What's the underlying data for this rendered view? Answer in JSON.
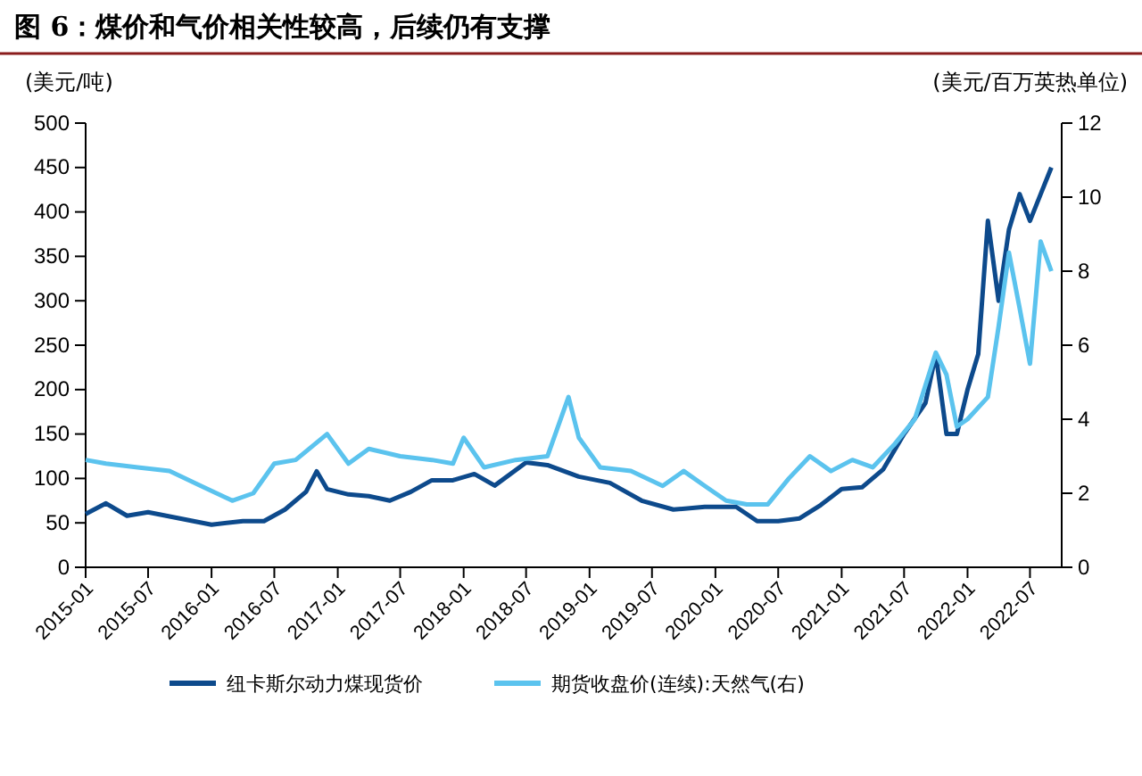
{
  "chart_data": {
    "type": "line",
    "title": "图 6：煤价和气价相关性较高，后续仍有支撑",
    "ylabel": "(美元/吨)",
    "y2label": "(美元/百万英热单位)",
    "xlim": [
      "2015-01",
      "2022-10"
    ],
    "xticks": [
      "2015-01",
      "2015-07",
      "2016-01",
      "2016-07",
      "2017-01",
      "2017-07",
      "2018-01",
      "2018-07",
      "2019-01",
      "2019-07",
      "2020-01",
      "2020-07",
      "2021-01",
      "2021-07",
      "2022-01",
      "2022-07"
    ],
    "ylim": [
      0,
      500
    ],
    "yticks": [
      0,
      50,
      100,
      150,
      200,
      250,
      300,
      350,
      400,
      450,
      500
    ],
    "y2lim": [
      0,
      12
    ],
    "y2ticks": [
      0,
      2,
      4,
      6,
      8,
      10,
      12
    ],
    "legend": "bottom",
    "grid": false,
    "series": [
      {
        "name": "纽卡斯尔动力煤现货价",
        "color": "#0d4a8c",
        "x": [
          "2015-01",
          "2015-03",
          "2015-05",
          "2015-07",
          "2015-10",
          "2016-01",
          "2016-04",
          "2016-06",
          "2016-08",
          "2016-10",
          "2016-11",
          "2016-12",
          "2017-02",
          "2017-04",
          "2017-06",
          "2017-08",
          "2017-10",
          "2017-12",
          "2018-02",
          "2018-04",
          "2018-07",
          "2018-09",
          "2018-12",
          "2019-03",
          "2019-06",
          "2019-09",
          "2019-12",
          "2020-03",
          "2020-05",
          "2020-07",
          "2020-09",
          "2020-11",
          "2021-01",
          "2021-03",
          "2021-05",
          "2021-07",
          "2021-09",
          "2021-10",
          "2021-11",
          "2021-12",
          "2022-01",
          "2022-02",
          "2022-03",
          "2022-04",
          "2022-05",
          "2022-06",
          "2022-07",
          "2022-08",
          "2022-09"
        ],
        "values": [
          60,
          72,
          58,
          62,
          55,
          48,
          52,
          52,
          65,
          85,
          108,
          88,
          82,
          80,
          75,
          85,
          98,
          98,
          105,
          92,
          118,
          115,
          102,
          95,
          75,
          65,
          68,
          68,
          52,
          52,
          55,
          70,
          88,
          90,
          110,
          150,
          185,
          240,
          150,
          150,
          200,
          240,
          390,
          300,
          380,
          420,
          390,
          420,
          450
        ]
      },
      {
        "name": "期货收盘价(连续):天然气(右)",
        "color": "#5bc3ee",
        "axis": "y2",
        "x": [
          "2015-01",
          "2015-03",
          "2015-06",
          "2015-09",
          "2015-12",
          "2016-03",
          "2016-05",
          "2016-07",
          "2016-09",
          "2016-12",
          "2017-02",
          "2017-04",
          "2017-07",
          "2017-10",
          "2017-12",
          "2018-01",
          "2018-03",
          "2018-06",
          "2018-09",
          "2018-11",
          "2018-12",
          "2019-02",
          "2019-05",
          "2019-08",
          "2019-10",
          "2019-12",
          "2020-02",
          "2020-04",
          "2020-06",
          "2020-08",
          "2020-10",
          "2020-12",
          "2021-02",
          "2021-04",
          "2021-06",
          "2021-08",
          "2021-10",
          "2021-11",
          "2021-12",
          "2022-01",
          "2022-03",
          "2022-04",
          "2022-05",
          "2022-06",
          "2022-07",
          "2022-08",
          "2022-09"
        ],
        "values": [
          2.9,
          2.8,
          2.7,
          2.6,
          2.2,
          1.8,
          2.0,
          2.8,
          2.9,
          3.6,
          2.8,
          3.2,
          3.0,
          2.9,
          2.8,
          3.5,
          2.7,
          2.9,
          3.0,
          4.6,
          3.5,
          2.7,
          2.6,
          2.2,
          2.6,
          2.2,
          1.8,
          1.7,
          1.7,
          2.4,
          3.0,
          2.6,
          2.9,
          2.7,
          3.3,
          4.0,
          5.8,
          5.2,
          3.8,
          4.0,
          4.6,
          6.5,
          8.5,
          7.0,
          5.5,
          8.8,
          8.0
        ]
      }
    ]
  }
}
